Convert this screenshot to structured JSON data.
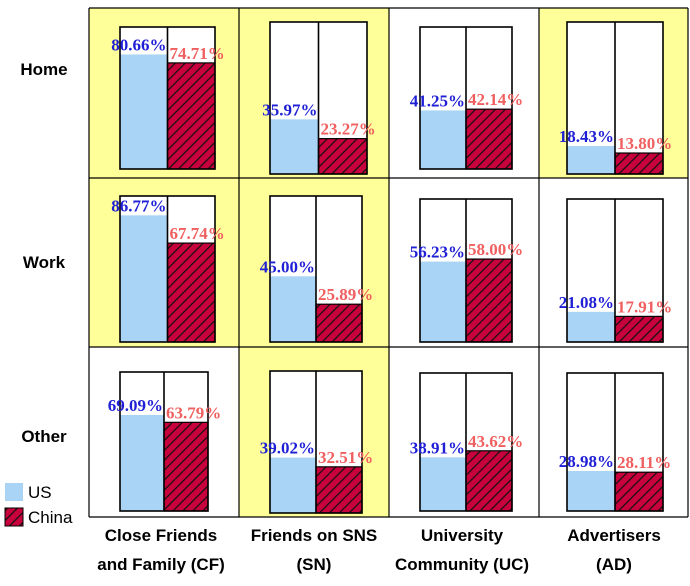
{
  "chart_data": {
    "type": "bar",
    "rows": [
      "Home",
      "Work",
      "Other"
    ],
    "columns": [
      [
        "Close Friends",
        "and Family (CF)"
      ],
      [
        "Friends on SNS",
        "(SN)"
      ],
      [
        "University",
        "Community (UC)"
      ],
      [
        "Advertisers",
        "(AD)"
      ]
    ],
    "series": [
      {
        "name": "US",
        "color": "#a9d4f5",
        "values": [
          [
            80.66,
            35.97,
            41.25,
            18.43
          ],
          [
            86.77,
            45.0,
            56.23,
            21.08
          ],
          [
            69.09,
            39.02,
            38.91,
            28.98
          ]
        ],
        "labels": [
          [
            "80.66%",
            "35.97%",
            "41.25%",
            "18.43%"
          ],
          [
            "86.77%",
            "45.00%",
            "56.23%",
            "21.08%"
          ],
          [
            "69.09%",
            "39.02%",
            "38.91%",
            "28.98%"
          ]
        ],
        "label_color": "#1f1fd6"
      },
      {
        "name": "China",
        "color": "#c8003c",
        "values": [
          [
            74.71,
            23.27,
            42.14,
            13.8
          ],
          [
            67.74,
            25.89,
            58.0,
            17.91
          ],
          [
            63.79,
            32.51,
            43.62,
            28.11
          ]
        ],
        "labels": [
          [
            "74.71%",
            "23.27%",
            "42.14%",
            "13.80%"
          ],
          [
            "67.74%",
            "25.89%",
            "58.00%",
            "17.91%"
          ],
          [
            "63.79%",
            "32.51%",
            "43.62%",
            "28.11%"
          ]
        ],
        "label_color": "#f06060",
        "pattern": "hatched"
      }
    ],
    "highlighted_cells": [
      [
        true,
        true,
        false,
        true
      ],
      [
        true,
        true,
        false,
        false
      ],
      [
        false,
        true,
        false,
        false
      ]
    ],
    "highlight_color": "#ffff99",
    "ylim": [
      0,
      100
    ],
    "legend": {
      "position": "bottom-left",
      "entries": [
        "US",
        "China"
      ]
    }
  }
}
